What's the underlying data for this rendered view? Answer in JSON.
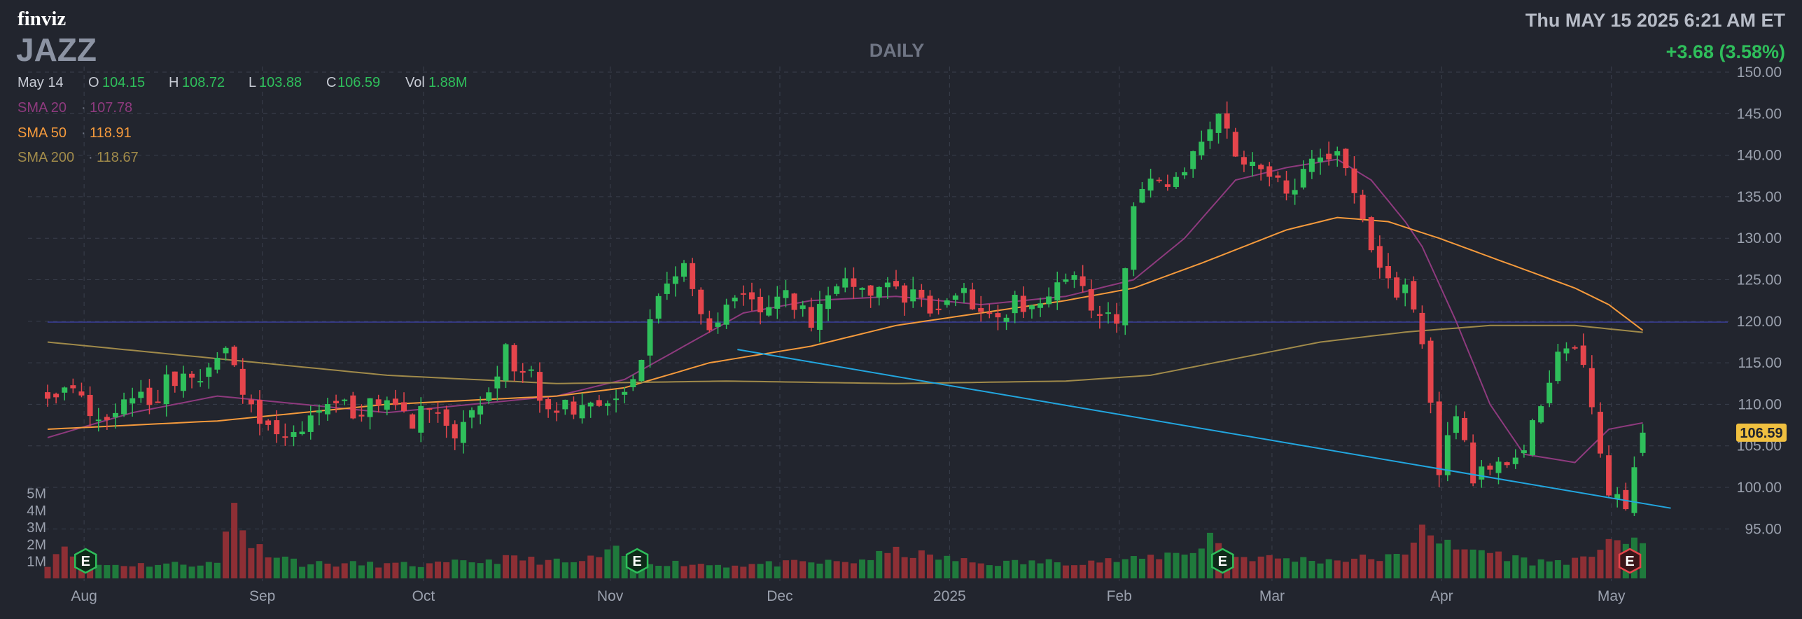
{
  "header": {
    "logo": "finviz",
    "ticker": "JAZZ",
    "timeframe": "DAILY",
    "datetime": "Thu MAY 15 2025 6:21 AM ET",
    "change": "+3.68 (3.58%)",
    "ohlc": {
      "date": "May 14",
      "o_label": "O",
      "o": "104.15",
      "h_label": "H",
      "h": "108.72",
      "l_label": "L",
      "l": "103.88",
      "c_label": "C",
      "c": "106.59",
      "vol_label": "Vol",
      "vol": "1.88M"
    },
    "sma": [
      {
        "label": "SMA 20",
        "value": "107.78",
        "color": "#8e3a7e"
      },
      {
        "label": "SMA 50",
        "value": "118.91",
        "color": "#f59a3c"
      },
      {
        "label": "SMA 200",
        "value": "118.67",
        "color": "#a08a4a"
      }
    ]
  },
  "colors": {
    "up": "#2fbf5b",
    "down": "#e5454c",
    "bg": "#22252e",
    "grid": "#3a3f4c",
    "text": "#c7cbd4",
    "trendline": "#22a6df",
    "hline": "#3a3f9a",
    "last_price_bg": "#f0c040"
  },
  "chart_data": {
    "type": "candlestick",
    "title": "JAZZ",
    "subtitle": "DAILY",
    "ylim": [
      92.5,
      150.0
    ],
    "y_ticks": [
      "150.00",
      "145.00",
      "140.00",
      "135.00",
      "130.00",
      "125.00",
      "120.00",
      "115.00",
      "110.00",
      "105.00",
      "100.00",
      "95.00"
    ],
    "x_labels": [
      {
        "label": "Aug",
        "index": 1
      },
      {
        "label": "Sep",
        "index": 22
      },
      {
        "label": "Oct",
        "index": 41
      },
      {
        "label": "Nov",
        "index": 63
      },
      {
        "label": "Dec",
        "index": 83
      },
      {
        "label": "2025",
        "index": 103
      },
      {
        "label": "Feb",
        "index": 123
      },
      {
        "label": "Mar",
        "index": 141
      },
      {
        "label": "Apr",
        "index": 161
      },
      {
        "label": "May",
        "index": 181
      }
    ],
    "grid": true,
    "last_price": "106.59",
    "horizontal_line": 119.9,
    "trendline": {
      "from": [
        78,
        116.6
      ],
      "to": [
        188,
        97.5
      ]
    },
    "volume_ticks": [
      {
        "label": "5M",
        "value": 5
      },
      {
        "label": "4M",
        "value": 4
      },
      {
        "label": "3M",
        "value": 3
      },
      {
        "label": "2M",
        "value": 2
      },
      {
        "label": "1M",
        "value": 1
      }
    ],
    "earnings_markers": [
      {
        "index": 2,
        "label": "E",
        "type": "positive"
      },
      {
        "index": 67,
        "label": "E",
        "type": "positive"
      },
      {
        "index": 136,
        "label": "E",
        "type": "positive"
      },
      {
        "index": 184,
        "label": "E",
        "type": "negative"
      }
    ],
    "anchors": [
      [
        0,
        111.5
      ],
      [
        3,
        111
      ],
      [
        6,
        108
      ],
      [
        9,
        111
      ],
      [
        12,
        110
      ],
      [
        15,
        113.5
      ],
      [
        18,
        114
      ],
      [
        21,
        116.5
      ],
      [
        24,
        110
      ],
      [
        27,
        106
      ],
      [
        30,
        107
      ],
      [
        33,
        111
      ],
      [
        36,
        109
      ],
      [
        39,
        111
      ],
      [
        42,
        108
      ],
      [
        45,
        109
      ],
      [
        48,
        107
      ],
      [
        51,
        110
      ],
      [
        54,
        116
      ],
      [
        57,
        113
      ],
      [
        60,
        109
      ],
      [
        63,
        110
      ],
      [
        66,
        109
      ],
      [
        69,
        112
      ],
      [
        72,
        124
      ],
      [
        75,
        127
      ],
      [
        78,
        119
      ],
      [
        81,
        124
      ],
      [
        84,
        122
      ],
      [
        87,
        123
      ],
      [
        90,
        120
      ],
      [
        93,
        125
      ],
      [
        96,
        123
      ],
      [
        99,
        124
      ],
      [
        102,
        123
      ],
      [
        105,
        121
      ],
      [
        108,
        123
      ],
      [
        111,
        120
      ],
      [
        114,
        122
      ],
      [
        117,
        123
      ],
      [
        120,
        126
      ],
      [
        123,
        122
      ],
      [
        126,
        121
      ],
      [
        128,
        134
      ],
      [
        130,
        137
      ],
      [
        132,
        136
      ],
      [
        134,
        138
      ],
      [
        136,
        141
      ],
      [
        138,
        145
      ],
      [
        140,
        141
      ],
      [
        142,
        139
      ],
      [
        144,
        138
      ],
      [
        146,
        136
      ],
      [
        148,
        138
      ],
      [
        150,
        140
      ],
      [
        152,
        141
      ],
      [
        154,
        136
      ],
      [
        156,
        128
      ],
      [
        158,
        124
      ],
      [
        160,
        124
      ],
      [
        162,
        118
      ],
      [
        164,
        102
      ],
      [
        166,
        108
      ],
      [
        168,
        101
      ],
      [
        170,
        103
      ],
      [
        172,
        102
      ],
      [
        174,
        104
      ],
      [
        176,
        111
      ],
      [
        178,
        116
      ],
      [
        180,
        118
      ],
      [
        182,
        110
      ],
      [
        184,
        100
      ],
      [
        186,
        98
      ],
      [
        188,
        106.59
      ]
    ],
    "volume_anchors": [
      [
        0,
        0.9
      ],
      [
        2,
        2.1
      ],
      [
        5,
        0.8
      ],
      [
        20,
        0.9
      ],
      [
        22,
        4.6
      ],
      [
        24,
        2.0
      ],
      [
        30,
        0.9
      ],
      [
        45,
        0.8
      ],
      [
        55,
        1.2
      ],
      [
        62,
        0.9
      ],
      [
        67,
        1.6
      ],
      [
        70,
        1.0
      ],
      [
        80,
        0.8
      ],
      [
        95,
        1.0
      ],
      [
        100,
        1.6
      ],
      [
        110,
        0.9
      ],
      [
        128,
        1.1
      ],
      [
        136,
        1.8
      ],
      [
        137,
        2.6
      ],
      [
        140,
        1.3
      ],
      [
        150,
        1.1
      ],
      [
        160,
        1.3
      ],
      [
        162,
        3.6
      ],
      [
        164,
        2.3
      ],
      [
        166,
        1.6
      ],
      [
        168,
        1.8
      ],
      [
        175,
        1.0
      ],
      [
        182,
        1.1
      ],
      [
        184,
        2.8
      ],
      [
        186,
        2.1
      ],
      [
        188,
        1.9
      ]
    ],
    "sma20_anchors": [
      [
        0,
        106
      ],
      [
        10,
        109
      ],
      [
        20,
        111
      ],
      [
        30,
        110
      ],
      [
        40,
        109
      ],
      [
        50,
        110
      ],
      [
        60,
        111
      ],
      [
        68,
        113
      ],
      [
        75,
        117
      ],
      [
        82,
        121
      ],
      [
        90,
        122.5
      ],
      [
        100,
        123
      ],
      [
        110,
        122
      ],
      [
        120,
        123
      ],
      [
        128,
        125
      ],
      [
        134,
        130
      ],
      [
        140,
        137
      ],
      [
        146,
        138.5
      ],
      [
        152,
        139.5
      ],
      [
        156,
        137
      ],
      [
        160,
        132
      ],
      [
        162,
        129
      ],
      [
        166,
        120
      ],
      [
        170,
        110
      ],
      [
        174,
        104
      ],
      [
        180,
        103
      ],
      [
        184,
        107
      ],
      [
        188,
        107.78
      ]
    ],
    "sma50_anchors": [
      [
        0,
        107
      ],
      [
        20,
        108
      ],
      [
        40,
        110
      ],
      [
        60,
        111
      ],
      [
        68,
        112
      ],
      [
        78,
        115
      ],
      [
        90,
        117
      ],
      [
        100,
        119.5
      ],
      [
        110,
        121
      ],
      [
        120,
        122.5
      ],
      [
        128,
        124
      ],
      [
        136,
        127
      ],
      [
        146,
        131
      ],
      [
        152,
        132.5
      ],
      [
        158,
        132
      ],
      [
        164,
        130
      ],
      [
        172,
        127
      ],
      [
        180,
        124
      ],
      [
        184,
        122
      ],
      [
        188,
        118.91
      ]
    ],
    "sma200_anchors": [
      [
        0,
        117.5
      ],
      [
        20,
        115.5
      ],
      [
        40,
        113.5
      ],
      [
        60,
        112.5
      ],
      [
        80,
        112.8
      ],
      [
        100,
        112.5
      ],
      [
        120,
        112.8
      ],
      [
        130,
        113.5
      ],
      [
        140,
        115.5
      ],
      [
        150,
        117.5
      ],
      [
        160,
        118.7
      ],
      [
        170,
        119.5
      ],
      [
        180,
        119.5
      ],
      [
        188,
        118.67
      ]
    ]
  }
}
